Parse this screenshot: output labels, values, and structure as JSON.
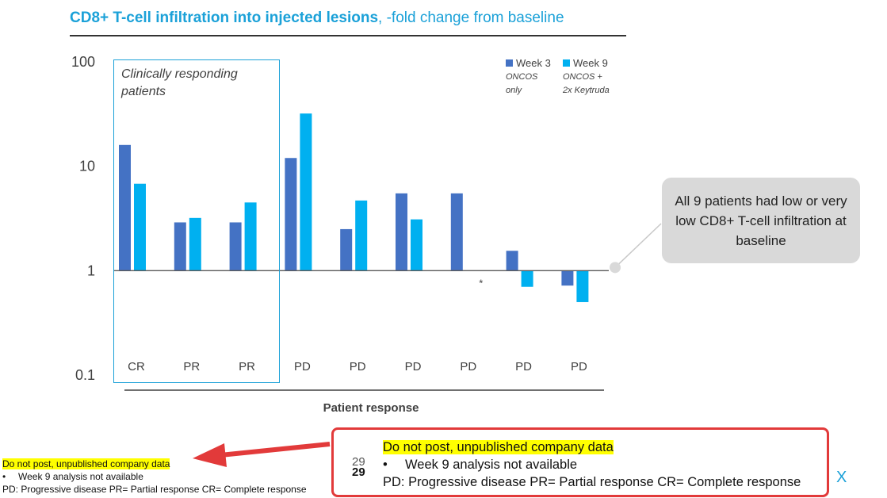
{
  "title": {
    "bold": "CD8+ T-cell infiltration into injected lesions",
    "rest": ", -fold change from baseline"
  },
  "colors": {
    "week3": "#4472c4",
    "week9": "#00b0f0",
    "accent": "#1ba1d8",
    "alert": "#e23a3a"
  },
  "responding_box_label": "Clinically responding patients",
  "legend": [
    {
      "name": "Week 3",
      "sub1": "ONCOS",
      "sub2": "only"
    },
    {
      "name": "Week 9",
      "sub1": "ONCOS +",
      "sub2": "2x Keytruda"
    }
  ],
  "asterisk": "*",
  "callout": "All 9 patients had low or very low CD8+ T-cell infiltration at baseline",
  "notes": {
    "warning": "Do not post, unpublished company data",
    "bullet_symbol": "•",
    "bullet": "Week 9 analysis not available",
    "legend_line": "PD: Progressive disease  PR= Partial response CR= Complete response",
    "page_number": "29",
    "close": "X"
  },
  "chart_data": {
    "type": "bar",
    "scale": "log",
    "ylim": [
      0.1,
      100
    ],
    "yticks": [
      "0.1",
      "1",
      "10",
      "100"
    ],
    "xlabel": "Patient response",
    "ylabel": "",
    "categories": [
      "CR",
      "PR",
      "PR",
      "PD",
      "PD",
      "PD",
      "PD",
      "PD",
      "PD"
    ],
    "series": [
      {
        "name": "Week 3",
        "values": [
          16,
          2.9,
          2.9,
          12,
          2.5,
          5.5,
          5.5,
          1.55,
          0.72
        ]
      },
      {
        "name": "Week 9",
        "values": [
          6.8,
          3.2,
          4.5,
          32,
          4.7,
          3.1,
          null,
          0.7,
          0.5
        ]
      }
    ]
  }
}
